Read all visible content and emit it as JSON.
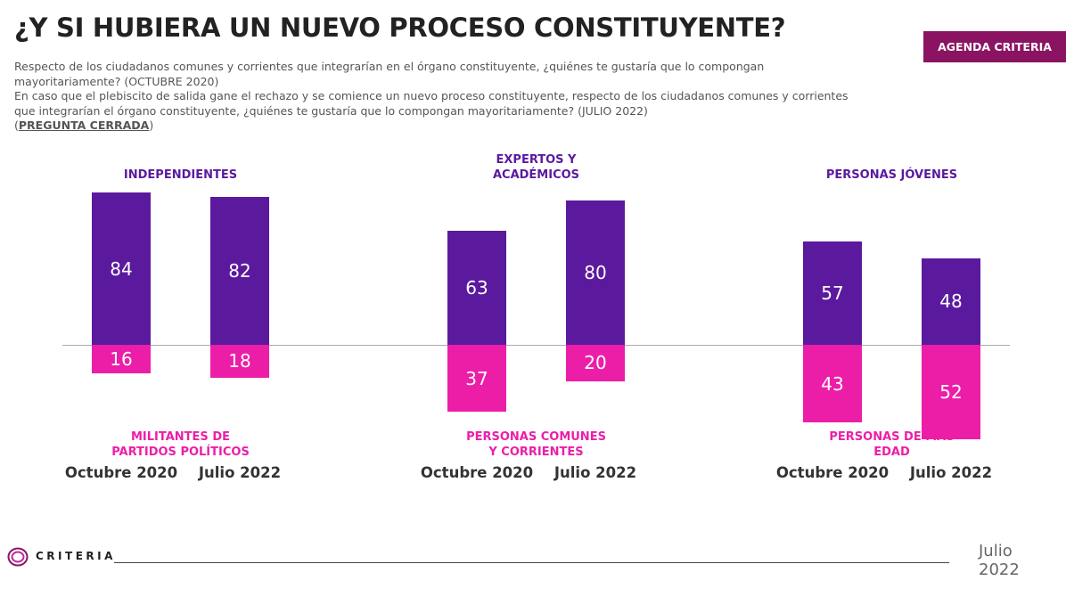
{
  "header": {
    "title": "¿Y SI HUBIERA UN NUEVO PROCESO CONSTITUYENTE?",
    "subtitle": [
      "Respecto de los ciudadanos comunes y corrientes que integrarían en el órgano constituyente, ¿quiénes te gustaría que lo compongan mayoritariamente? (OCTUBRE 2020)",
      "En caso que el plebiscito de salida gane el rechazo y se comience un nuevo proceso constituyente, respecto de los ciudadanos comunes y corrientes que integrarían el órgano constituyente, ¿quiénes te gustaría que lo compongan mayoritariamente? (JULIO 2022)"
    ],
    "note_open": "(",
    "note": "PREGUNTA CERRADA",
    "note_close": ")",
    "badge": "AGENDA CRITERIA"
  },
  "chart_data": [
    {
      "type": "diverging_bar",
      "categories": [
        "Octubre 2020",
        "Julio 2022"
      ],
      "series": [
        {
          "name": "INDEPENDIENTES",
          "color": "#5b1a9e",
          "values": [
            84,
            82
          ]
        },
        {
          "name": "MILITANTES DE PARTIDOS POLÍTICOS",
          "color": "#ec1ea8",
          "values": [
            16,
            18
          ]
        }
      ]
    },
    {
      "type": "diverging_bar",
      "categories": [
        "Octubre 2020",
        "Julio 2022"
      ],
      "series": [
        {
          "name": "EXPERTOS Y ACADÉMICOS",
          "color": "#5b1a9e",
          "values": [
            63,
            80
          ]
        },
        {
          "name": "PERSONAS COMUNES Y CORRIENTES",
          "color": "#ec1ea8",
          "values": [
            37,
            20
          ]
        }
      ]
    },
    {
      "type": "diverging_bar",
      "categories": [
        "Octubre 2020",
        "Julio 2022"
      ],
      "series": [
        {
          "name": "PERSONAS JÓVENES",
          "color": "#5b1a9e",
          "values": [
            57,
            48
          ]
        },
        {
          "name": "PERSONAS DE MÁS EDAD",
          "color": "#ec1ea8",
          "values": [
            43,
            52
          ]
        }
      ]
    }
  ],
  "footer": {
    "logo": "CRITERIA",
    "date": "Julio 2022"
  }
}
